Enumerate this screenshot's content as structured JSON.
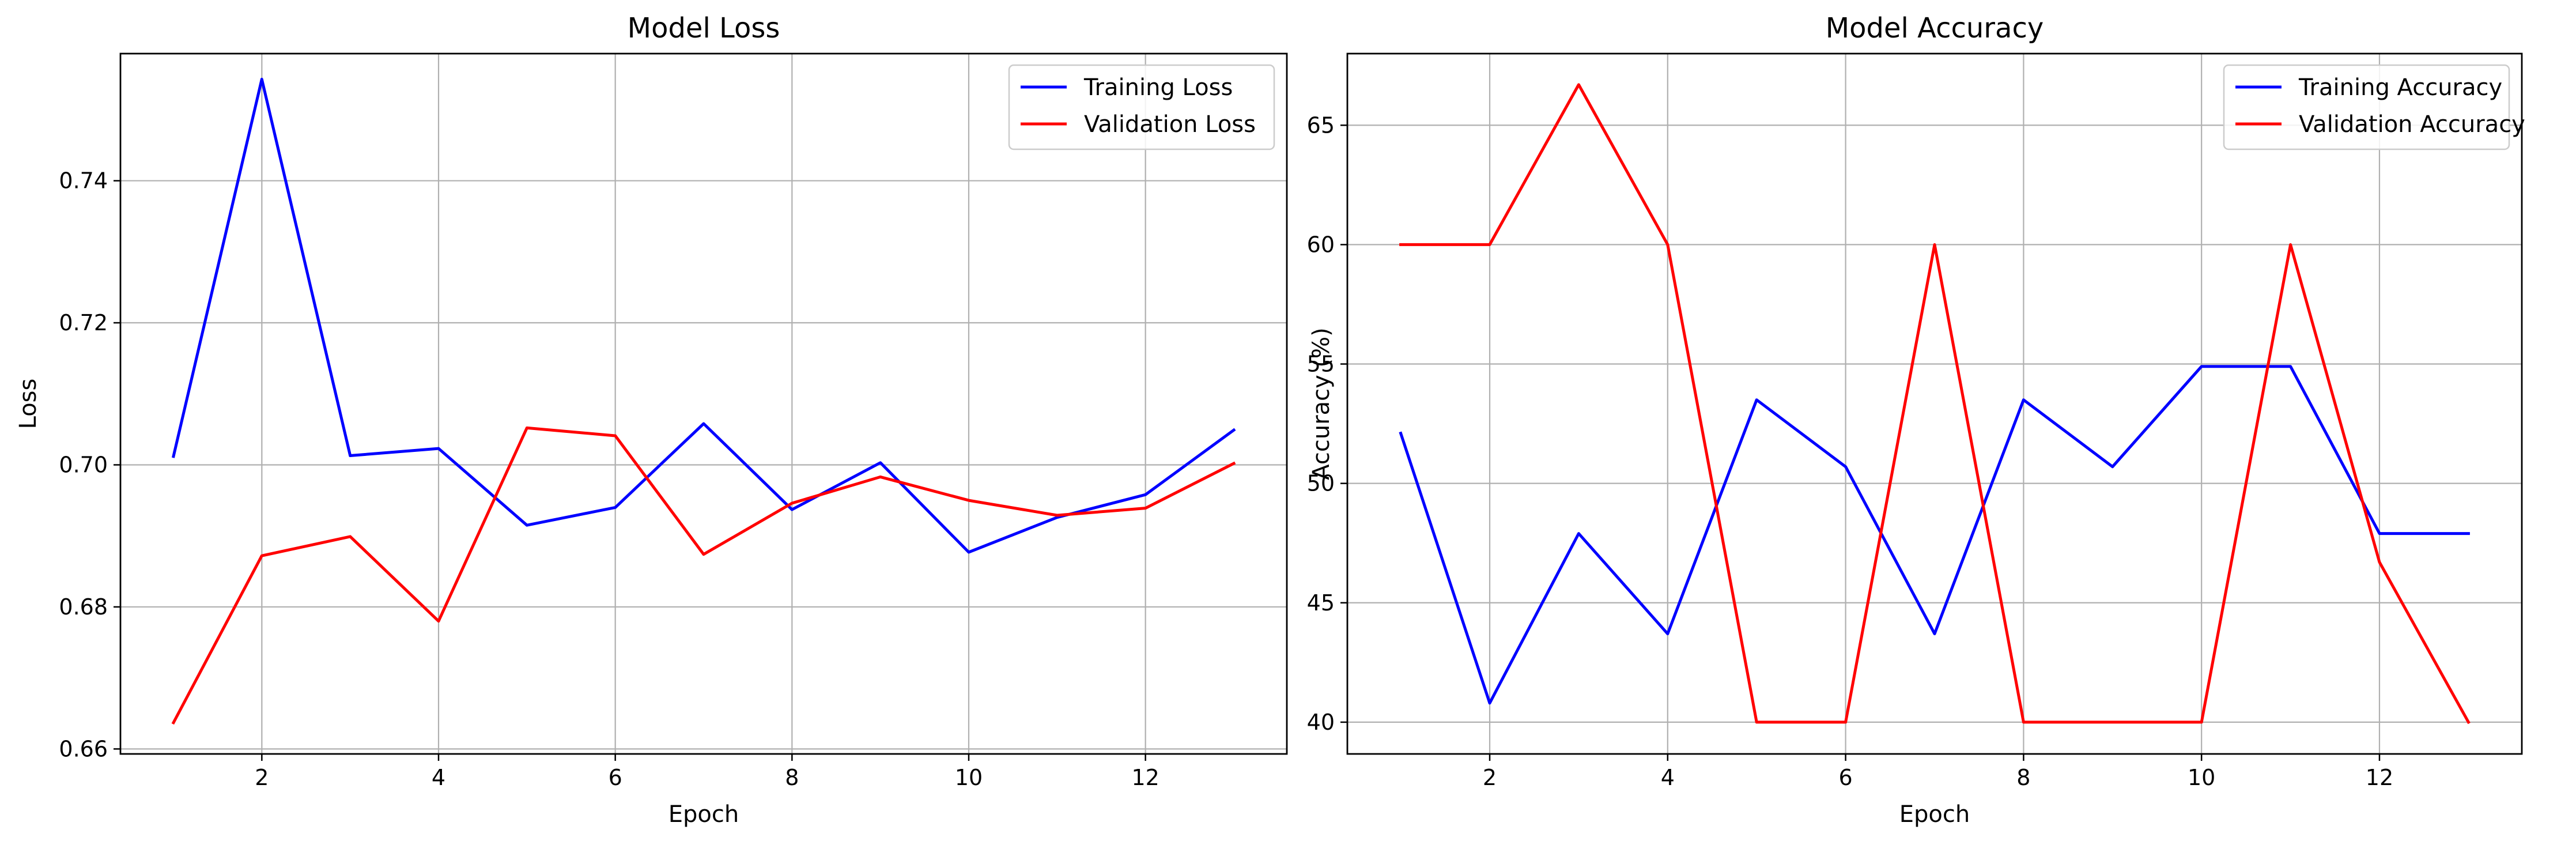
{
  "chart_data": [
    {
      "type": "line",
      "title": "Model Loss",
      "xlabel": "Epoch",
      "ylabel": "Loss",
      "x": [
        1,
        2,
        3,
        4,
        5,
        6,
        7,
        8,
        9,
        10,
        11,
        12,
        13
      ],
      "xlim": [
        0.4,
        13.6
      ],
      "ylim": [
        0.6593,
        0.7579
      ],
      "xticks": [
        2,
        4,
        6,
        8,
        10,
        12
      ],
      "xtick_labels": [
        "2",
        "4",
        "6",
        "8",
        "10",
        "12"
      ],
      "yticks": [
        0.66,
        0.68,
        0.7,
        0.72,
        0.74
      ],
      "ytick_labels": [
        "0.66",
        "0.68",
        "0.70",
        "0.72",
        "0.74"
      ],
      "grid": true,
      "legend_position": "top-right",
      "series": [
        {
          "name": "Training Loss",
          "color": "#0000ff",
          "values": [
            0.7012,
            0.7543,
            0.7013,
            0.7023,
            0.6915,
            0.694,
            0.7058,
            0.6937,
            0.7003,
            0.6877,
            0.6926,
            0.6958,
            0.7049
          ]
        },
        {
          "name": "Validation Loss",
          "color": "#ff0000",
          "values": [
            0.6637,
            0.6872,
            0.6899,
            0.678,
            0.7052,
            0.7041,
            0.6874,
            0.6946,
            0.6983,
            0.695,
            0.6929,
            0.6939,
            0.7002
          ]
        }
      ]
    },
    {
      "type": "line",
      "title": "Model Accuracy",
      "xlabel": "Epoch",
      "ylabel": "Accuracy (%)",
      "x": [
        1,
        2,
        3,
        4,
        5,
        6,
        7,
        8,
        9,
        10,
        11,
        12,
        13
      ],
      "xlim": [
        0.4,
        13.6
      ],
      "ylim": [
        38.67,
        68.0
      ],
      "xticks": [
        2,
        4,
        6,
        8,
        10,
        12
      ],
      "xtick_labels": [
        "2",
        "4",
        "6",
        "8",
        "10",
        "12"
      ],
      "yticks": [
        40,
        45,
        50,
        55,
        60,
        65
      ],
      "ytick_labels": [
        "40",
        "45",
        "50",
        "55",
        "60",
        "65"
      ],
      "grid": true,
      "legend_position": "top-right",
      "series": [
        {
          "name": "Training Accuracy",
          "color": "#0000ff",
          "values": [
            52.1,
            40.8,
            47.9,
            43.7,
            53.5,
            50.7,
            43.7,
            53.5,
            50.7,
            54.9,
            54.9,
            47.9,
            47.9
          ]
        },
        {
          "name": "Validation Accuracy",
          "color": "#ff0000",
          "values": [
            60.0,
            60.0,
            66.7,
            60.0,
            40.0,
            40.0,
            60.0,
            40.0,
            40.0,
            40.0,
            60.0,
            46.7,
            40.0
          ]
        }
      ]
    }
  ]
}
